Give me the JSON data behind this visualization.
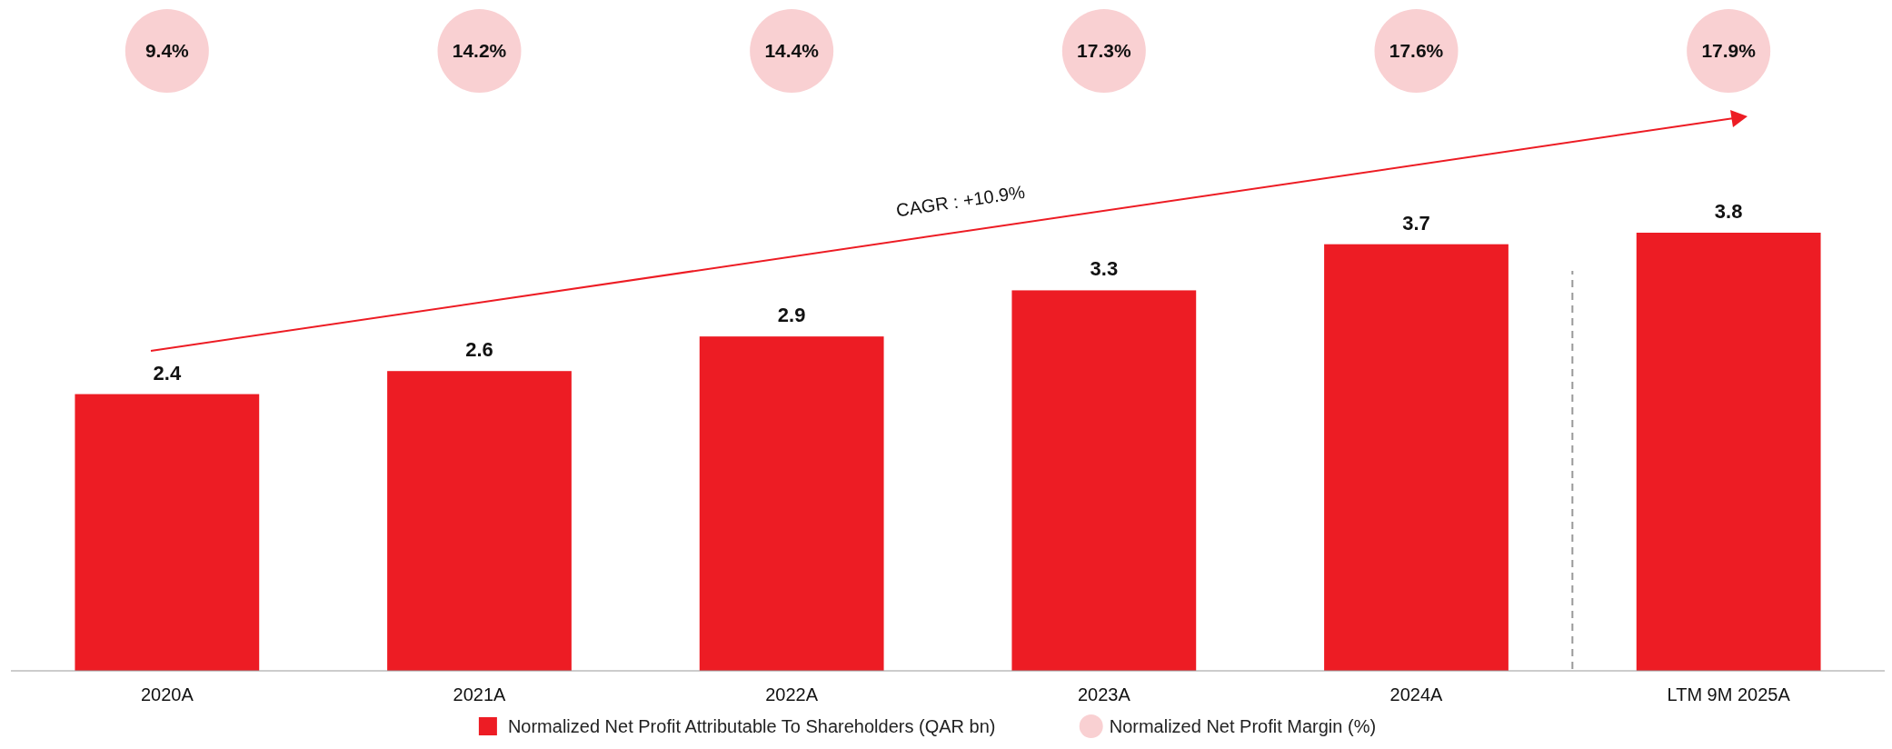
{
  "chart_data": {
    "type": "bar",
    "categories": [
      "2020A",
      "2021A",
      "2022A",
      "2023A",
      "2024A",
      "LTM 9M 2025A"
    ],
    "series": [
      {
        "name": "Normalized Net Profit Attributable To Shareholders (QAR bn)",
        "color": "#ed1c24",
        "values": [
          2.4,
          2.6,
          2.9,
          3.3,
          3.7,
          3.8
        ]
      }
    ],
    "data_labels": true,
    "annotations": [
      "9.4%",
      "14.2%",
      "14.4%",
      "17.3%",
      "17.6%",
      "17.9%",
      "Normalized Net Profit Margin (%)",
      "CAGR : +10.9%"
    ],
    "legend": "bottom"
  }
}
